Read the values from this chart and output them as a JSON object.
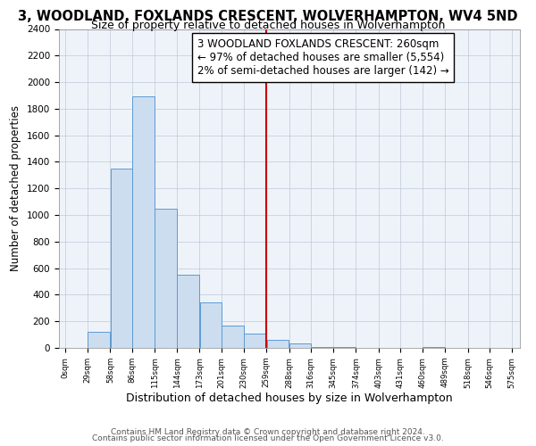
{
  "title": "3, WOODLAND, FOXLANDS CRESCENT, WOLVERHAMPTON, WV4 5ND",
  "subtitle": "Size of property relative to detached houses in Wolverhampton",
  "xlabel": "Distribution of detached houses by size in Wolverhampton",
  "ylabel": "Number of detached properties",
  "bar_edges": [
    0,
    29,
    58,
    86,
    115,
    144,
    173,
    201,
    230,
    259,
    288,
    316,
    345,
    374,
    403,
    431,
    460,
    489,
    518,
    546,
    575
  ],
  "bar_heights": [
    0,
    120,
    1350,
    1890,
    1050,
    550,
    340,
    165,
    110,
    60,
    35,
    10,
    5,
    0,
    0,
    0,
    10,
    0,
    0,
    0
  ],
  "bar_color": "#ccddf0",
  "bar_edge_color": "#5b9bd5",
  "vline_x": 259,
  "vline_color": "#cc0000",
  "annotation_line1": "3 WOODLAND FOXLANDS CRESCENT: 260sqm",
  "annotation_line2": "← 97% of detached houses are smaller (5,554)",
  "annotation_line3": "2% of semi-detached houses are larger (142) →",
  "grid_color": "#c0c8d8",
  "bg_color": "#eef3f9",
  "ylim": [
    0,
    2400
  ],
  "yticks": [
    0,
    200,
    400,
    600,
    800,
    1000,
    1200,
    1400,
    1600,
    1800,
    2000,
    2200,
    2400
  ],
  "xtick_labels": [
    "0sqm",
    "29sqm",
    "58sqm",
    "86sqm",
    "115sqm",
    "144sqm",
    "173sqm",
    "201sqm",
    "230sqm",
    "259sqm",
    "288sqm",
    "316sqm",
    "345sqm",
    "374sqm",
    "403sqm",
    "431sqm",
    "460sqm",
    "489sqm",
    "518sqm",
    "546sqm",
    "575sqm"
  ],
  "footer1": "Contains HM Land Registry data © Crown copyright and database right 2024.",
  "footer2": "Contains public sector information licensed under the Open Government Licence v3.0.",
  "title_fontsize": 10.5,
  "subtitle_fontsize": 9,
  "xlabel_fontsize": 9,
  "ylabel_fontsize": 8.5,
  "annotation_fontsize": 8.5,
  "footer_fontsize": 6.5
}
